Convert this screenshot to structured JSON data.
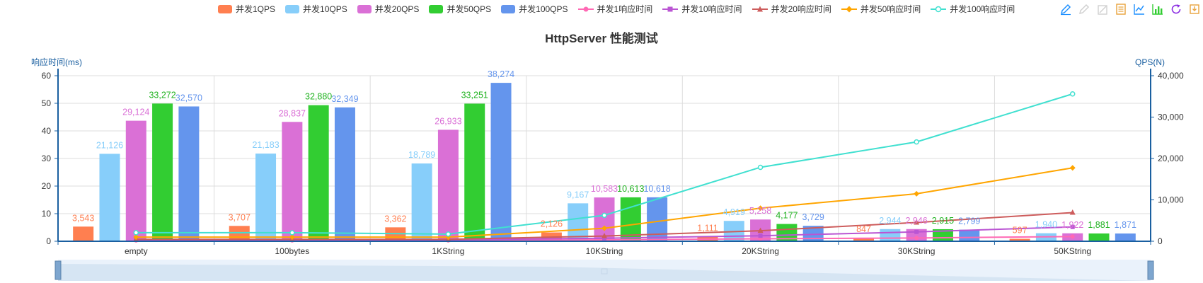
{
  "chart_data": {
    "type": "bar",
    "title": "HttpServer 性能测试",
    "y_left_label": "响应时间(ms)",
    "y_right_label": "QPS(N)",
    "y_left_ticks": [
      "60",
      "50",
      "40",
      "30",
      "20",
      "10",
      "0"
    ],
    "y_right_ticks": [
      "40,000",
      "30,000",
      "20,000",
      "10,000",
      "0"
    ],
    "y_left_range": [
      0,
      60
    ],
    "y_right_range": [
      0,
      40000
    ],
    "categories": [
      "empty",
      "100bytes",
      "1KString",
      "10KString",
      "20KString",
      "30KString",
      "50KString"
    ],
    "grid": true,
    "legend_position": "top",
    "bar_series": [
      {
        "name": "并发1QPS",
        "color": "#ff7f50",
        "label_color": "#ff7f50",
        "values": [
          3543,
          3707,
          3362,
          2126,
          1111,
          847,
          597
        ],
        "labels": [
          "3,543",
          "3,707",
          "3,362",
          "2,126",
          "1,111",
          "847",
          "597"
        ]
      },
      {
        "name": "并发10QPS",
        "color": "#87cefa",
        "label_color": "#87cefa",
        "values": [
          21126,
          21183,
          18789,
          9167,
          4919,
          2944,
          1940
        ],
        "labels": [
          "21,126",
          "21,183",
          "18,789",
          "9,167",
          "4,919",
          "2,944",
          "1,940"
        ]
      },
      {
        "name": "并发20QPS",
        "color": "#da70d6",
        "label_color": "#da70d6",
        "values": [
          29124,
          28837,
          26933,
          10583,
          5258,
          2946,
          1922
        ],
        "labels": [
          "29,124",
          "28,837",
          "26,933",
          "10,583",
          "5,258",
          "2,946",
          "1,922"
        ]
      },
      {
        "name": "并发50QPS",
        "color": "#32cd32",
        "label_color": "#22b322",
        "values": [
          33272,
          32880,
          33251,
          10613,
          4177,
          2915,
          1881
        ],
        "labels": [
          "33,272",
          "32,880",
          "33,251",
          "10,613",
          "4,177",
          "2,915",
          "1,881"
        ]
      },
      {
        "name": "并发100QPS",
        "color": "#6495ed",
        "label_color": "#6495ed",
        "values": [
          32570,
          32349,
          38274,
          10618,
          3729,
          2799,
          1871
        ],
        "labels": [
          "32,570",
          "32,349",
          "38,274",
          "10,618",
          "3,729",
          "2,799",
          "1,871"
        ]
      }
    ],
    "line_series": [
      {
        "name": "并发1响应时间",
        "color": "#ff69b4",
        "marker": "circle",
        "values": [
          0.3,
          0.3,
          0.3,
          0.5,
          0.9,
          1.2,
          1.7
        ]
      },
      {
        "name": "并发10响应时间",
        "color": "#ba55d3",
        "marker": "square",
        "values": [
          0.5,
          0.5,
          0.5,
          1.1,
          2.0,
          3.4,
          5.2
        ]
      },
      {
        "name": "并发20响应时间",
        "color": "#cd5c5c",
        "marker": "triangle",
        "values": [
          0.7,
          0.7,
          0.7,
          1.9,
          3.8,
          6.8,
          10.4
        ]
      },
      {
        "name": "并发50响应时间",
        "color": "#ffa500",
        "marker": "diamond",
        "values": [
          1.5,
          1.5,
          1.5,
          4.7,
          12.0,
          17.2,
          26.6
        ]
      },
      {
        "name": "并发100响应时间",
        "color": "#40e0d0",
        "marker": "ring",
        "values": [
          3.1,
          3.1,
          2.6,
          9.4,
          26.8,
          36.0,
          53.4
        ]
      }
    ]
  },
  "toolbox": {
    "icons": [
      "mark-icon",
      "mark-undo-icon",
      "mark-clear-icon",
      "data-view-icon",
      "line-chart-icon",
      "bar-chart-icon",
      "restore-icon",
      "save-image-icon"
    ],
    "accent": "#1e90ff"
  }
}
